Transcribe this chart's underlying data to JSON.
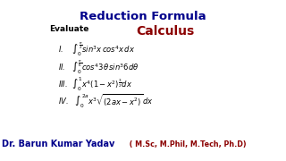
{
  "title1": "Reduction Formula",
  "title2": "Calculus",
  "title1_color": "#00008B",
  "title2_color": "#8B0000",
  "evaluate_label": "Evaluate",
  "items": [
    "I.    $\\int_0^{\\frac{\\pi}{2}} sin^3x\\, cos^4x\\, dx$",
    "II.   $\\int_0^{\\frac{\\pi}{6}} cos^4 3\\theta\\, sin^3 6d\\theta$",
    "III.  $\\int_0^{1} x^4(1-x^2)^{\\frac{3}{2}}dx$",
    "IV.   $\\int_0^{2a} x^3\\sqrt{(2ax-x^2)}\\,dx$"
  ],
  "footer": "Dr. Barun Kumar Yadav",
  "footer_quals": " ( M.Sc, M.Phil, M.Tech, Ph.D)",
  "footer_color": "#00008B",
  "footer_quals_color": "#8B0000",
  "bg_color": "#FFFFFF",
  "item_color": "#000000",
  "evaluate_color": "#000000",
  "title1_fontsize": 9.5,
  "title2_fontsize": 10,
  "evaluate_fontsize": 6.5,
  "item_fontsize": 6.0,
  "footer_fontsize": 7.0,
  "footer_quals_fontsize": 5.8
}
